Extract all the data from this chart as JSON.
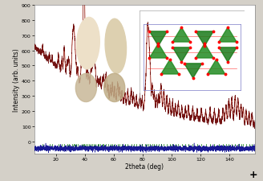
{
  "title": "",
  "xlabel": "2theta (deg)",
  "ylabel": "Intensity (arb. units)",
  "xlim": [
    5,
    158
  ],
  "ylim": [
    -80,
    900
  ],
  "yticks": [
    0,
    100,
    200,
    300,
    400,
    500,
    600,
    700,
    800,
    900
  ],
  "xticks": [
    20,
    40,
    60,
    80,
    100,
    120,
    140
  ],
  "background_color": "#d4d0c8",
  "plot_bg_color": "#ffffff",
  "data_color": "#660000",
  "fit_color": "#cc2200",
  "residual_color": "#000088",
  "tick_color": "#007700",
  "noise_baseline": -45,
  "tick_baseline": -18,
  "figsize": [
    3.28,
    2.26
  ],
  "dpi": 100
}
